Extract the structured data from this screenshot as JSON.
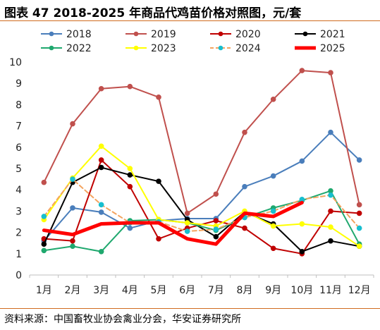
{
  "title": "图表 47 2018-2025 年商品代鸡苗价格对照图，元/套",
  "source": "资料来源：中国畜牧业协会禽业分会，华安证券研究所",
  "chart_data": {
    "type": "line",
    "title": "",
    "xlabel": "",
    "ylabel": "",
    "categories": [
      "1月",
      "2月",
      "3月",
      "4月",
      "5月",
      "6月",
      "7月",
      "8月",
      "9月",
      "10月",
      "11月",
      "12月"
    ],
    "ylim": [
      0,
      10
    ],
    "yticks": [
      "0",
      "1",
      "2",
      "3",
      "4",
      "5",
      "6",
      "7",
      "8",
      "9",
      "10"
    ],
    "grid": false,
    "legend": "top",
    "series": [
      {
        "name": "2018",
        "color": "#4a7ebb",
        "style": "solid",
        "marker": "circle",
        "width": 2,
        "values": [
          1.6,
          3.15,
          2.95,
          2.2,
          2.55,
          2.65,
          2.65,
          4.15,
          4.65,
          5.35,
          6.7,
          5.4
        ]
      },
      {
        "name": "2019",
        "color": "#c0504d",
        "style": "solid",
        "marker": "circle",
        "width": 2,
        "values": [
          4.35,
          7.1,
          8.75,
          8.85,
          8.35,
          2.9,
          3.8,
          6.7,
          8.25,
          9.6,
          9.5,
          3.3
        ]
      },
      {
        "name": "2020",
        "color": "#c00000",
        "style": "solid",
        "marker": "circle",
        "width": 2,
        "values": [
          1.7,
          1.6,
          5.4,
          4.15,
          1.7,
          2.2,
          2.55,
          2.2,
          1.25,
          1.0,
          3.0,
          2.9
        ]
      },
      {
        "name": "2021",
        "color": "#000000",
        "style": "solid",
        "marker": "circle",
        "width": 2,
        "values": [
          1.45,
          4.35,
          5.05,
          4.7,
          4.4,
          2.6,
          1.8,
          2.95,
          2.4,
          1.1,
          1.6,
          1.35
        ]
      },
      {
        "name": "2022",
        "color": "#1fa86e",
        "style": "solid",
        "marker": "circle",
        "width": 2,
        "values": [
          1.15,
          1.35,
          1.1,
          2.55,
          2.6,
          2.45,
          2.1,
          2.7,
          3.15,
          3.5,
          3.95,
          1.45
        ]
      },
      {
        "name": "2023",
        "color": "#ffff00",
        "style": "solid",
        "marker": "circle",
        "width": 2,
        "values": [
          2.6,
          4.55,
          6.05,
          5.0,
          2.6,
          2.45,
          2.3,
          3.0,
          2.3,
          2.4,
          2.25,
          1.35
        ]
      },
      {
        "name": "2024",
        "color": "#f4a460",
        "style": "dashed",
        "marker": "circle",
        "markerColor": "#17becf",
        "width": 2,
        "values": [
          2.75,
          4.5,
          3.3,
          2.45,
          2.5,
          2.05,
          2.15,
          2.7,
          3.0,
          3.55,
          3.75,
          2.2
        ]
      },
      {
        "name": "2025",
        "color": "#ff0000",
        "style": "solid",
        "marker": "none",
        "width": 5,
        "values": [
          2.1,
          1.9,
          2.4,
          2.45,
          2.45,
          1.7,
          1.45,
          2.9,
          2.75,
          3.4,
          null,
          null
        ]
      }
    ]
  }
}
